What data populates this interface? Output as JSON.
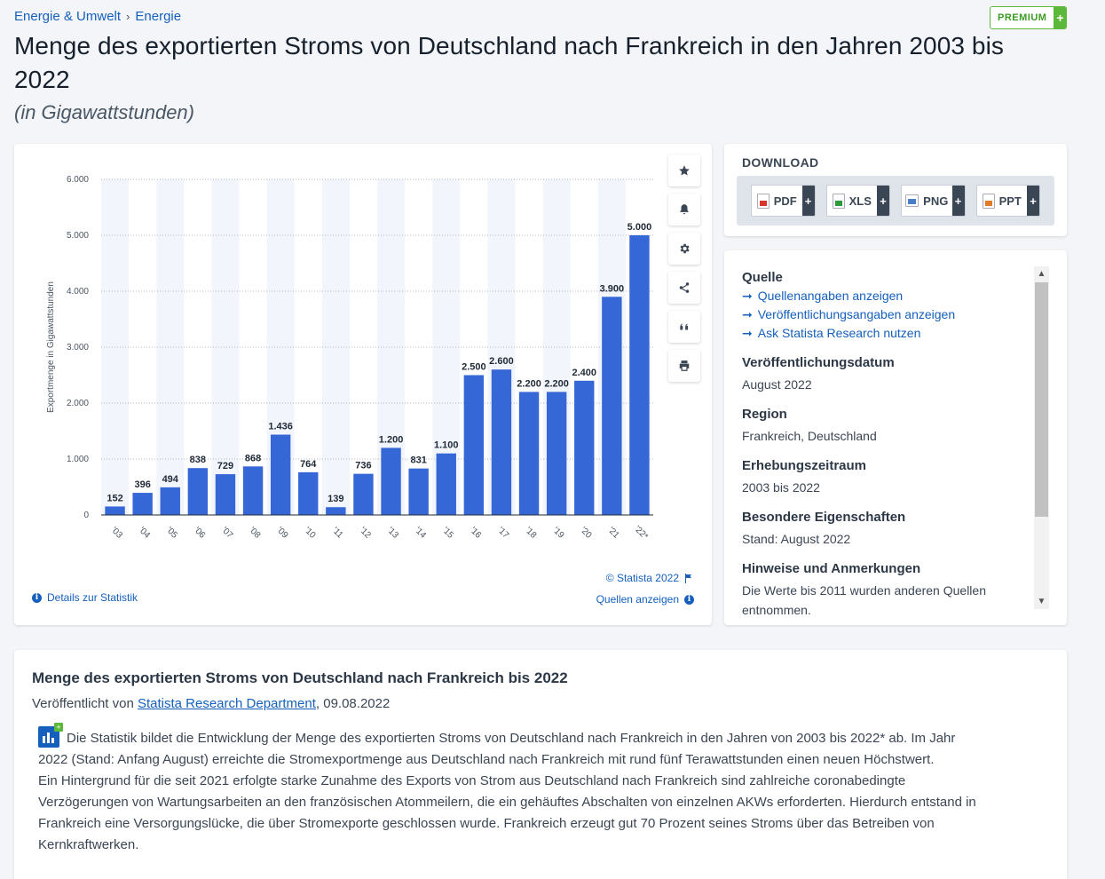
{
  "breadcrumb": {
    "item1": "Energie & Umwelt",
    "sep": "›",
    "item2": "Energie"
  },
  "premium_badge": {
    "label": "PREMIUM",
    "plus": "+"
  },
  "title": "Menge des exportierten Stroms von Deutschland nach Frankreich in den Jahren 2003 bis 2022",
  "subtitle": "(in Gigawattstunden)",
  "chart_data": {
    "type": "bar",
    "title": "",
    "ylabel": "Exportmenge in Gigawattstunden",
    "xlabel": "",
    "ylim": [
      0,
      6000
    ],
    "yticks": [
      {
        "value": 0,
        "label": "0"
      },
      {
        "value": 1000,
        "label": "1.000"
      },
      {
        "value": 2000,
        "label": "2.000"
      },
      {
        "value": 3000,
        "label": "3.000"
      },
      {
        "value": 4000,
        "label": "4.000"
      },
      {
        "value": 5000,
        "label": "5.000"
      },
      {
        "value": 6000,
        "label": "6.000"
      }
    ],
    "categories": [
      "'03",
      "'04",
      "'05",
      "'06",
      "'07",
      "'08",
      "'09",
      "'10",
      "'11",
      "'12",
      "'13",
      "'14",
      "'15",
      "'16",
      "'17",
      "'18",
      "'19",
      "'20",
      "'21",
      "'22*"
    ],
    "values": [
      152,
      396,
      494,
      838,
      729,
      868,
      1436,
      764,
      139,
      736,
      1200,
      831,
      1100,
      2500,
      2600,
      2200,
      2200,
      2400,
      3900,
      5000
    ],
    "value_labels": [
      "152",
      "396",
      "494",
      "838",
      "729",
      "868",
      "1.436",
      "764",
      "139",
      "736",
      "1.200",
      "831",
      "1.100",
      "2.500",
      "2.600",
      "2.200",
      "2.200",
      "2.400",
      "3.900",
      "5.000"
    ],
    "bar_color": "#3567d6",
    "grid": true,
    "legend": "none"
  },
  "chart_footer": {
    "copyright": "© Statista 2022",
    "details_link": "Details zur Statistik",
    "sources_link": "Quellen anzeigen"
  },
  "download": {
    "title": "DOWNLOAD",
    "buttons": [
      {
        "label": "PDF",
        "plus": "+"
      },
      {
        "label": "XLS",
        "plus": "+"
      },
      {
        "label": "PNG",
        "plus": "+"
      },
      {
        "label": "PPT",
        "plus": "+"
      }
    ]
  },
  "meta": {
    "source_heading": "Quelle",
    "source_links": [
      "Quellenangaben anzeigen",
      "Veröffentlichungsangaben anzeigen",
      "Ask Statista Research nutzen"
    ],
    "pubdate_heading": "Veröffentlichungsdatum",
    "pubdate_value": "August 2022",
    "region_heading": "Region",
    "region_value": "Frankreich, Deutschland",
    "period_heading": "Erhebungszeitraum",
    "period_value": "2003 bis 2022",
    "special_heading": "Besondere Eigenschaften",
    "special_value": "Stand: August 2022",
    "notes_heading": "Hinweise und Anmerkungen",
    "notes_value": "Die Werte bis 2011 wurden anderen Quellen entnommen."
  },
  "description": {
    "title": "Menge des exportierten Stroms von Deutschland nach Frankreich bis 2022",
    "published_prefix": "Veröffentlicht von ",
    "published_author": "Statista Research Department",
    "published_date": ", 09.08.2022",
    "paragraph1": "Die Statistik bildet die Entwicklung der Menge des exportierten Stroms von Deutschland nach Frankreich in den Jahren von 2003 bis 2022* ab. Im Jahr 2022 (Stand: Anfang August) erreichte die Stromexportmenge aus Deutschland nach Frankreich mit rund fünf Terawattstunden einen neuen Höchstwert.",
    "paragraph2": "Ein Hintergrund für die seit 2021 erfolgte starke Zunahme des Exports von Strom aus Deutschland nach Frankreich sind zahlreiche coronabedingte Verzögerungen von Wartungsarbeiten an den französischen Atommeilern, die ein gehäuftes Abschalten von einzelnen AKWs erforderten. Hierdurch entstand in Frankreich eine Versorgungslücke, die über Stromexporte geschlossen wurde. Frankreich erzeugt gut 70 Prozent seines Stroms über das Betreiben von Kernkraftwerken."
  }
}
